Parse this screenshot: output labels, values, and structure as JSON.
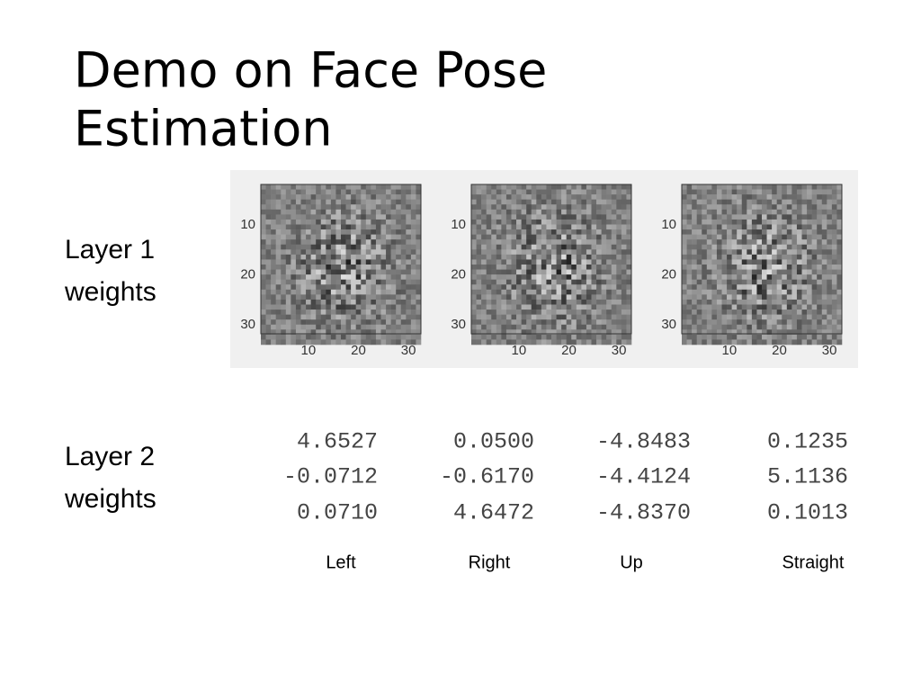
{
  "title_lines": [
    "Demo on Face Pose",
    "Estimation"
  ],
  "layer1_label": [
    "Layer 1",
    "weights"
  ],
  "layer2_label": [
    "Layer 2",
    "weights"
  ],
  "weight_images": [
    {
      "yticks": [
        10,
        20,
        30
      ],
      "xticks": [
        10,
        20,
        30
      ]
    },
    {
      "yticks": [
        10,
        20,
        30
      ],
      "xticks": [
        10,
        20,
        30
      ]
    },
    {
      "yticks": [
        10,
        20,
        30
      ],
      "xticks": [
        10,
        20,
        30
      ]
    }
  ],
  "layer2_weights": [
    [
      "4.6527",
      "0.0500",
      "-4.8483",
      "0.1235"
    ],
    [
      "-0.0712",
      "-0.6170",
      "-4.4124",
      "5.1136"
    ],
    [
      "0.0710",
      "4.6472",
      "-4.8370",
      "0.1013"
    ]
  ],
  "column_labels": [
    "Left",
    "Right",
    "Up",
    "Straight"
  ]
}
